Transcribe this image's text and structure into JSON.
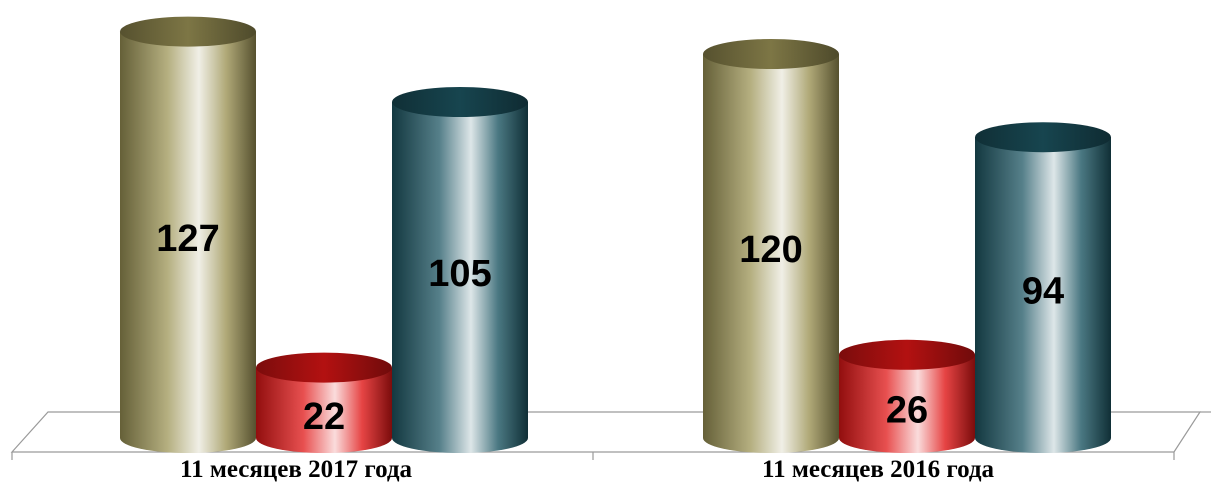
{
  "chart_data": {
    "type": "bar",
    "style": "3d-cylinder",
    "categories": [
      "11 месяцев 2017 года",
      "11 месяцев 2016 года"
    ],
    "series": [
      {
        "values": [
          127,
          120
        ],
        "color": "#9c9456"
      },
      {
        "values": [
          22,
          26
        ],
        "color": "#e01515"
      },
      {
        "values": [
          105,
          94
        ],
        "color": "#1d5663"
      }
    ],
    "data_labels": true,
    "gridlines": false,
    "legend": "none"
  }
}
